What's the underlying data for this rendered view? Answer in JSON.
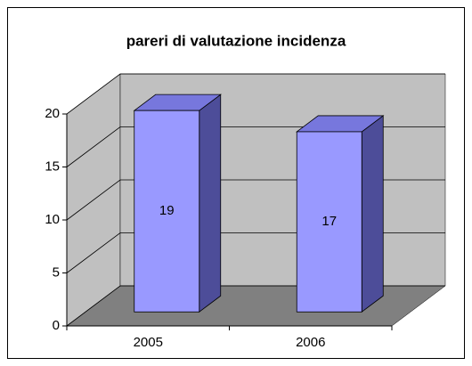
{
  "chart_data": {
    "type": "bar3d",
    "title": "pareri di valutazione incidenza",
    "categories": [
      "2005",
      "2006"
    ],
    "values": [
      19,
      17
    ],
    "color": "#9999ff",
    "ylim": [
      0,
      20
    ],
    "yticks": [
      0,
      5,
      10,
      15,
      20
    ],
    "grid": true
  }
}
